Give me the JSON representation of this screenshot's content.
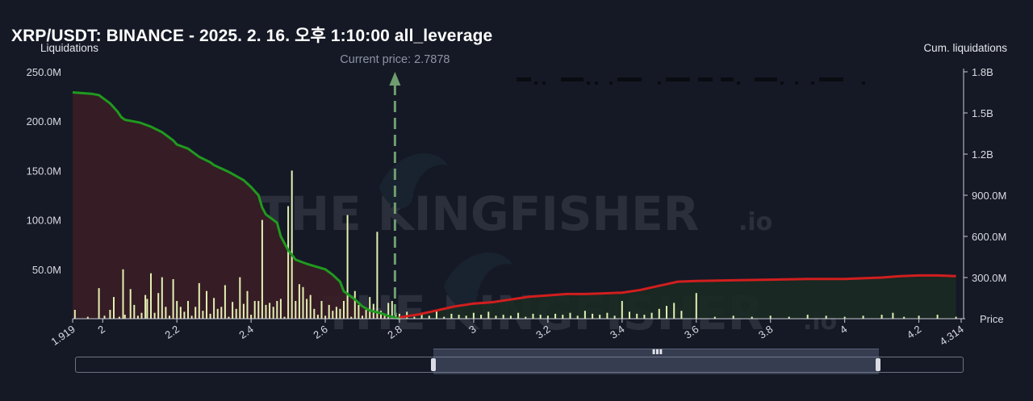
{
  "title": "XRP/USDT: BINANCE - 2025. 2. 16. 오후 1:10:00 all_leverage",
  "left_axis_title": "Liquidations",
  "right_axis_title": "Cum. liquidations",
  "x_axis_title": "Price",
  "current_price_label": "Current price: 2.7878",
  "watermark": {
    "text": "THE KINGFISHER",
    "suffix": ".io"
  },
  "colors": {
    "background": "#151925",
    "short_line": "#1f9a1f",
    "long_line": "#d21e1e",
    "short_fill": "#3a1d26",
    "long_fill": "#1a2a22",
    "bars": "#e3f0b2",
    "current_price": "#6f9d6f"
  },
  "chart_data": {
    "type": "bar",
    "title": "XRP/USDT: BINANCE - 2025. 2. 16. 오후 1:10:00 all_leverage",
    "xlabel": "Price",
    "ylabel": "Liquidations",
    "y2label": "Cum. liquidations",
    "xlim": [
      1.919,
      4.314
    ],
    "ylim": [
      0,
      250000000
    ],
    "y2lim": [
      0,
      1800000000
    ],
    "x_ticks": [
      "1.919",
      "2",
      "2.2",
      "2.4",
      "2.6",
      "2.8",
      "3",
      "3.2",
      "3.4",
      "3.6",
      "3.8",
      "4",
      "4.2",
      "4.314"
    ],
    "y_ticks": [
      "50.0M",
      "100.0M",
      "150.0M",
      "200.0M",
      "250.0M"
    ],
    "y2_ticks": [
      "300.0M",
      "600.0M",
      "900.0M",
      "1.2B",
      "1.5B",
      "1.8B"
    ],
    "current_price": 2.7878,
    "grid": false,
    "series": [
      {
        "type": "bar",
        "x": [
          1.925,
          1.96,
          1.99,
          2.005,
          2.02,
          2.03,
          2.045,
          2.055,
          2.06,
          2.075,
          2.085,
          2.095,
          2.105,
          2.115,
          2.12,
          2.13,
          2.14,
          2.15,
          2.16,
          2.17,
          2.18,
          2.19,
          2.2,
          2.21,
          2.22,
          2.23,
          2.24,
          2.25,
          2.26,
          2.27,
          2.28,
          2.29,
          2.3,
          2.31,
          2.32,
          2.33,
          2.34,
          2.35,
          2.36,
          2.37,
          2.38,
          2.39,
          2.4,
          2.41,
          2.42,
          2.43,
          2.44,
          2.45,
          2.46,
          2.47,
          2.48,
          2.49,
          2.5,
          2.51,
          2.52,
          2.53,
          2.54,
          2.55,
          2.56,
          2.57,
          2.58,
          2.59,
          2.6,
          2.61,
          2.62,
          2.63,
          2.64,
          2.65,
          2.66,
          2.67,
          2.68,
          2.69,
          2.7,
          2.71,
          2.72,
          2.73,
          2.74,
          2.75,
          2.76,
          2.77,
          2.78,
          2.79,
          2.8,
          2.82,
          2.84,
          2.86,
          2.88,
          2.9,
          2.92,
          2.94,
          2.96,
          2.98,
          3.0,
          3.02,
          3.04,
          3.06,
          3.08,
          3.1,
          3.12,
          3.14,
          3.16,
          3.18,
          3.2,
          3.22,
          3.24,
          3.26,
          3.28,
          3.3,
          3.32,
          3.34,
          3.36,
          3.38,
          3.4,
          3.42,
          3.44,
          3.46,
          3.48,
          3.5,
          3.52,
          3.54,
          3.56,
          3.6,
          3.65,
          3.7,
          3.75,
          3.8,
          3.85,
          3.9,
          3.95,
          4.0,
          4.05,
          4.1,
          4.13,
          4.16,
          4.2,
          4.25,
          4.3
        ],
        "values": [
          9,
          2,
          31,
          3,
          9,
          22,
          2,
          50,
          4,
          30,
          14,
          3,
          6,
          24,
          20,
          46,
          6,
          26,
          42,
          12,
          3,
          40,
          18,
          12,
          7,
          18,
          3,
          12,
          36,
          8,
          28,
          5,
          21,
          10,
          12,
          34,
          2,
          17,
          10,
          42,
          15,
          28,
          4,
          18,
          18,
          100,
          14,
          16,
          12,
          18,
          20,
          2,
          114,
          150,
          18,
          35,
          32,
          20,
          24,
          10,
          4,
          18,
          3,
          14,
          8,
          12,
          10,
          18,
          105,
          2,
          28,
          14,
          3,
          9,
          22,
          15,
          88,
          8,
          4,
          16,
          18,
          6,
          5,
          7,
          2,
          4,
          3,
          8,
          2,
          5,
          4,
          3,
          6,
          4,
          7,
          3,
          4,
          3,
          6,
          2,
          5,
          4,
          3,
          5,
          4,
          6,
          3,
          8,
          5,
          4,
          6,
          3,
          18,
          7,
          5,
          4,
          6,
          10,
          13,
          16,
          8,
          26,
          2,
          3,
          2,
          3,
          2,
          4,
          3,
          2,
          3,
          4,
          6,
          2,
          3,
          4,
          2
        ]
      },
      {
        "type": "line",
        "name": "short",
        "x": [
          1.919,
          1.97,
          1.99,
          2.0,
          2.02,
          2.04,
          2.05,
          2.06,
          2.08,
          2.1,
          2.13,
          2.16,
          2.19,
          2.2,
          2.23,
          2.26,
          2.29,
          2.3,
          2.34,
          2.38,
          2.4,
          2.42,
          2.43,
          2.44,
          2.47,
          2.48,
          2.5,
          2.52,
          2.55,
          2.6,
          2.62,
          2.64,
          2.65,
          2.68,
          2.7,
          2.72,
          2.75,
          2.77,
          2.8
        ],
        "values": [
          1.65,
          1.64,
          1.63,
          1.61,
          1.57,
          1.51,
          1.47,
          1.45,
          1.44,
          1.43,
          1.4,
          1.36,
          1.3,
          1.27,
          1.24,
          1.18,
          1.14,
          1.12,
          1.07,
          1.01,
          0.96,
          0.9,
          0.81,
          0.76,
          0.7,
          0.6,
          0.5,
          0.43,
          0.4,
          0.36,
          0.32,
          0.27,
          0.2,
          0.14,
          0.09,
          0.06,
          0.04,
          0.02,
          0.0
        ]
      },
      {
        "type": "line",
        "name": "long",
        "x": [
          2.8,
          2.85,
          2.9,
          2.95,
          3.0,
          3.05,
          3.1,
          3.15,
          3.2,
          3.25,
          3.3,
          3.35,
          3.4,
          3.45,
          3.5,
          3.55,
          3.6,
          3.7,
          3.8,
          3.9,
          4.0,
          4.05,
          4.1,
          4.15,
          4.2,
          4.25,
          4.3
        ],
        "values": [
          0.01,
          0.03,
          0.06,
          0.09,
          0.11,
          0.12,
          0.14,
          0.16,
          0.17,
          0.18,
          0.18,
          0.185,
          0.19,
          0.21,
          0.24,
          0.27,
          0.275,
          0.28,
          0.285,
          0.29,
          0.29,
          0.295,
          0.3,
          0.31,
          0.315,
          0.315,
          0.31
        ]
      }
    ]
  }
}
